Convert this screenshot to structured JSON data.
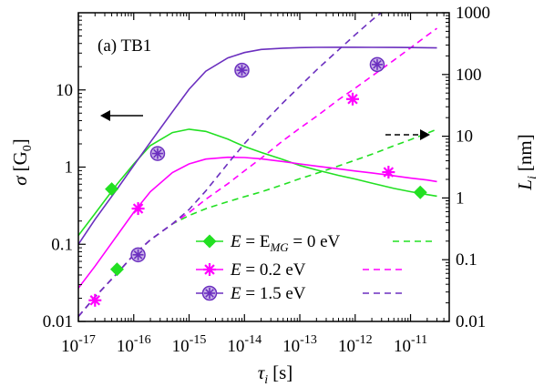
{
  "chart_data": {
    "type": "line",
    "panel_label": "(a) TB1",
    "x_axis": {
      "scale": "log",
      "range": [
        1e-17,
        5e-11
      ],
      "label_symbol": "τ",
      "label_subscript": "i",
      "label_unit": "[s]",
      "tick_values": [
        1e-17,
        1e-16,
        1e-15,
        1e-14,
        1e-13,
        1e-12,
        1e-11
      ],
      "tick_mantissa": "10",
      "tick_exponents": [
        "-17",
        "-16",
        "-15",
        "-14",
        "-13",
        "-12",
        "-11"
      ]
    },
    "y_left": {
      "scale": "log",
      "range": [
        0.01,
        100
      ],
      "label_symbol": "σ",
      "label_unit": "[G",
      "label_unit_sub": "0",
      "label_unit_end": "]",
      "tick_values": [
        0.01,
        0.1,
        1,
        10
      ],
      "tick_labels": [
        "0.01",
        "0.1",
        "1",
        "10"
      ]
    },
    "y_right": {
      "scale": "log",
      "range": [
        0.01,
        1000
      ],
      "label_symbol": "L",
      "label_subscript": "i",
      "label_unit": "[nm]",
      "tick_values": [
        0.01,
        0.1,
        1,
        10,
        100,
        1000
      ],
      "tick_labels": [
        "0.01",
        "0.1",
        "1",
        "10",
        "100",
        "1000"
      ]
    },
    "x": [
      1e-17,
      2e-17,
      5e-17,
      1e-16,
      2e-16,
      5e-16,
      1e-15,
      2e-15,
      5e-15,
      1e-14,
      2e-14,
      5e-14,
      1e-13,
      2e-13,
      5e-13,
      1e-12,
      2e-12,
      5e-12,
      1e-11,
      2e-11,
      3e-11
    ],
    "series": [
      {
        "legend_prefix": "E",
        "legend_mid": " = E",
        "legend_sub": "MG",
        "legend_suffix": " = 0 eV",
        "color": "#22e022",
        "marker": "cross-diamond",
        "sigma": [
          0.13,
          0.25,
          0.6,
          1.1,
          1.9,
          2.8,
          3.1,
          2.9,
          2.3,
          1.85,
          1.55,
          1.25,
          1.05,
          0.92,
          0.78,
          0.7,
          0.62,
          0.53,
          0.48,
          0.44,
          0.42
        ],
        "L": [
          0.012,
          0.025,
          0.06,
          0.12,
          0.21,
          0.38,
          0.52,
          0.67,
          0.87,
          1.05,
          1.25,
          1.65,
          2.05,
          2.5,
          3.3,
          4.1,
          5.1,
          7.0,
          8.8,
          11.2,
          13.0
        ],
        "sigma_markers": [
          [
            4e-17,
            0.52
          ],
          [
            1.5e-11,
            0.47
          ]
        ],
        "L_markers": [
          [
            5e-17,
            0.07
          ]
        ]
      },
      {
        "legend_prefix": "E",
        "legend_mid": " = 0.2 eV",
        "legend_sub": "",
        "legend_suffix": "",
        "color": "#ff00ff",
        "marker": "asterisk",
        "sigma": [
          0.027,
          0.052,
          0.13,
          0.26,
          0.48,
          0.85,
          1.1,
          1.27,
          1.34,
          1.33,
          1.28,
          1.18,
          1.1,
          1.03,
          0.95,
          0.89,
          0.84,
          0.77,
          0.72,
          0.68,
          0.65
        ],
        "L": [
          0.012,
          0.025,
          0.06,
          0.12,
          0.21,
          0.38,
          0.58,
          0.95,
          1.7,
          2.75,
          4.4,
          8.5,
          13.5,
          21,
          39,
          60,
          94,
          170,
          270,
          430,
          560
        ],
        "sigma_markers": [
          [
            1.2e-16,
            0.29
          ],
          [
            4e-12,
            0.86
          ]
        ],
        "L_markers": [
          [
            2e-17,
            0.022
          ],
          [
            1.2e-16,
            0.12
          ],
          [
            9e-13,
            40
          ]
        ]
      },
      {
        "legend_prefix": "E",
        "legend_mid": " = 1.5 eV",
        "legend_sub": "",
        "legend_suffix": "",
        "color": "#6b2fbf",
        "marker": "circle-asterisk",
        "sigma": [
          0.1,
          0.21,
          0.52,
          1.05,
          2.1,
          5.2,
          10.2,
          17.5,
          26,
          30.5,
          33.5,
          34.8,
          35.3,
          35.6,
          35.7,
          35.7,
          35.6,
          35.5,
          35.4,
          35.2,
          35.0
        ],
        "L": [
          0.012,
          0.025,
          0.06,
          0.12,
          0.21,
          0.38,
          0.65,
          1.3,
          3.6,
          7.6,
          15,
          35,
          64,
          118,
          250,
          440,
          760,
          1450,
          2300,
          3400,
          4300
        ],
        "sigma_markers": [
          [
            2.7e-16,
            1.5
          ],
          [
            9e-15,
            18
          ]
        ],
        "L_markers": [
          [
            1.2e-16,
            0.12
          ],
          [
            2.5e-12,
            145
          ]
        ]
      }
    ],
    "arrows": [
      {
        "points_to": "left",
        "color": "#000000"
      },
      {
        "points_to": "right",
        "color": "#000000",
        "style": "dashed"
      }
    ],
    "legend_position": "bottom-center",
    "grid": false
  }
}
